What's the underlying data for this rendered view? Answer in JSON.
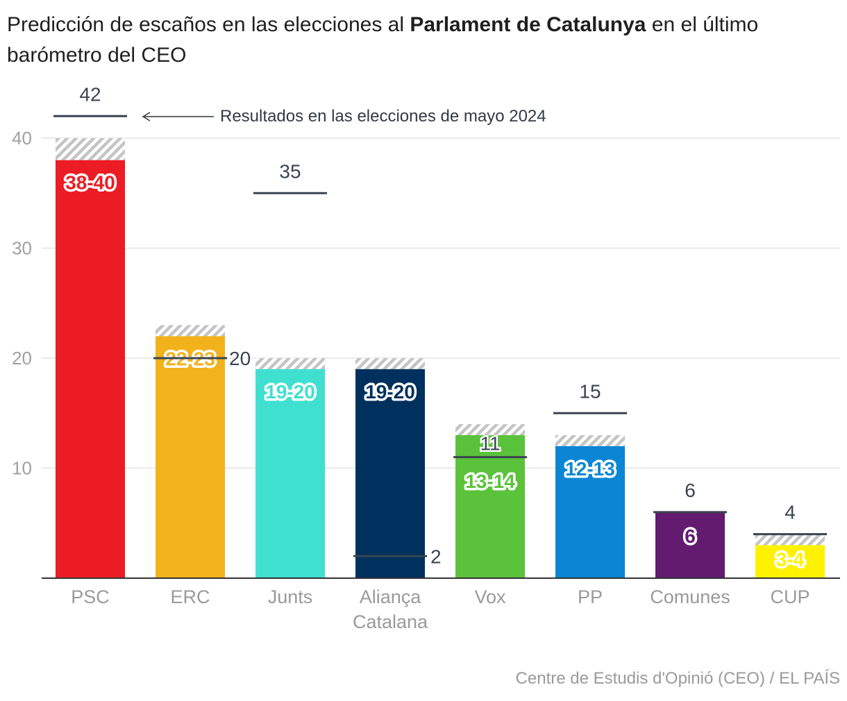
{
  "title": {
    "before": "Predicción de escaños en las elecciones al ",
    "bold": "Parlament de Catalunya",
    "after": " en el último barómetro del CEO"
  },
  "annotation": "Resultados en las elecciones de mayo 2024",
  "source": "Centre de Estudis d'Opinió (CEO) / EL PAÍS",
  "chart_data": {
    "type": "bar",
    "title": "Predicción de escaños en las elecciones al Parlament de Catalunya en el último barómetro del CEO",
    "xlabel": "",
    "ylabel": "",
    "ylim": [
      0,
      40
    ],
    "yticks": [
      10,
      20,
      30,
      40
    ],
    "grid": true,
    "categories": [
      [
        "PSC"
      ],
      [
        "ERC"
      ],
      [
        "Junts"
      ],
      [
        "Aliança",
        "Catalana"
      ],
      [
        "Vox"
      ],
      [
        "PP"
      ],
      [
        "Comunes"
      ],
      [
        "CUP"
      ]
    ],
    "series": [
      {
        "name": "",
        "range_low": [
          38,
          22,
          19,
          19,
          13,
          12,
          6,
          3
        ],
        "range_high": [
          40,
          23,
          20,
          20,
          14,
          13,
          6,
          4
        ],
        "labels": [
          "38-40",
          "22-23",
          "19-20",
          "19-20",
          "13-14",
          "12-13",
          "6",
          "3-4"
        ]
      },
      {
        "name": "Resultados en las elecciones de mayo 2024",
        "values": [
          42,
          20,
          35,
          2,
          11,
          15,
          6,
          4
        ]
      }
    ],
    "colors": [
      "#ec1c24",
      "#f2b21c",
      "#40e0d0",
      "#00305e",
      "#5bc23b",
      "#0a86d4",
      "#621b6f",
      "#fff200"
    ],
    "label_colors": [
      "#ffffff",
      "#ffffff",
      "#ffffff",
      "#ffffff",
      "#ffffff",
      "#ffffff",
      "#ffffff",
      "#ffffff"
    ]
  }
}
